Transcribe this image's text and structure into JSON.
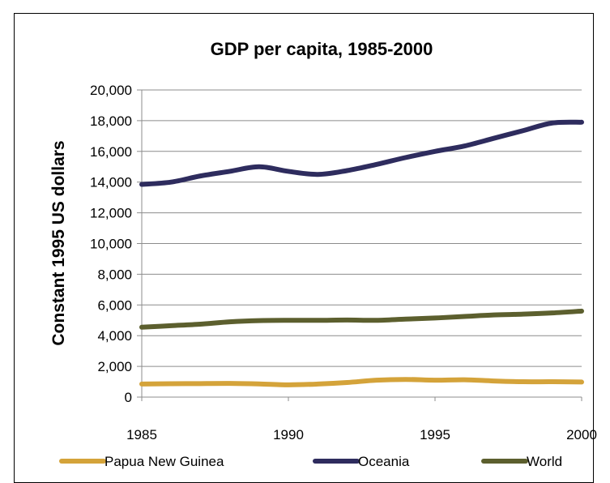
{
  "chart_data": {
    "type": "line",
    "title": "GDP per capita, 1985-2000",
    "xlabel": "",
    "ylabel": "Constant 1995 US dollars",
    "x": [
      1985,
      1986,
      1987,
      1988,
      1989,
      1990,
      1991,
      1992,
      1993,
      1994,
      1995,
      1996,
      1997,
      1998,
      1999,
      2000
    ],
    "xticks": [
      "1985",
      "1990",
      "1995",
      "2000"
    ],
    "yticks": [
      "0",
      "2,000",
      "4,000",
      "6,000",
      "8,000",
      "10,000",
      "12,000",
      "14,000",
      "16,000",
      "18,000",
      "20,000"
    ],
    "ylim": [
      0,
      20000
    ],
    "grid": true,
    "legend_position": "bottom",
    "series": [
      {
        "name": "Papua New Guinea",
        "color": "#d4a33a",
        "values": [
          850,
          870,
          880,
          890,
          860,
          800,
          850,
          950,
          1100,
          1150,
          1100,
          1130,
          1050,
          1000,
          1000,
          980
        ]
      },
      {
        "name": "Oceania",
        "color": "#2e2c5e",
        "values": [
          13850,
          14000,
          14400,
          14700,
          15000,
          14700,
          14500,
          14750,
          15150,
          15600,
          16000,
          16350,
          16850,
          17350,
          17850,
          17900
        ]
      },
      {
        "name": "World",
        "color": "#5c5f2e",
        "values": [
          4550,
          4650,
          4750,
          4900,
          4980,
          5000,
          5000,
          5020,
          5000,
          5080,
          5150,
          5250,
          5350,
          5400,
          5480,
          5600
        ]
      }
    ]
  }
}
